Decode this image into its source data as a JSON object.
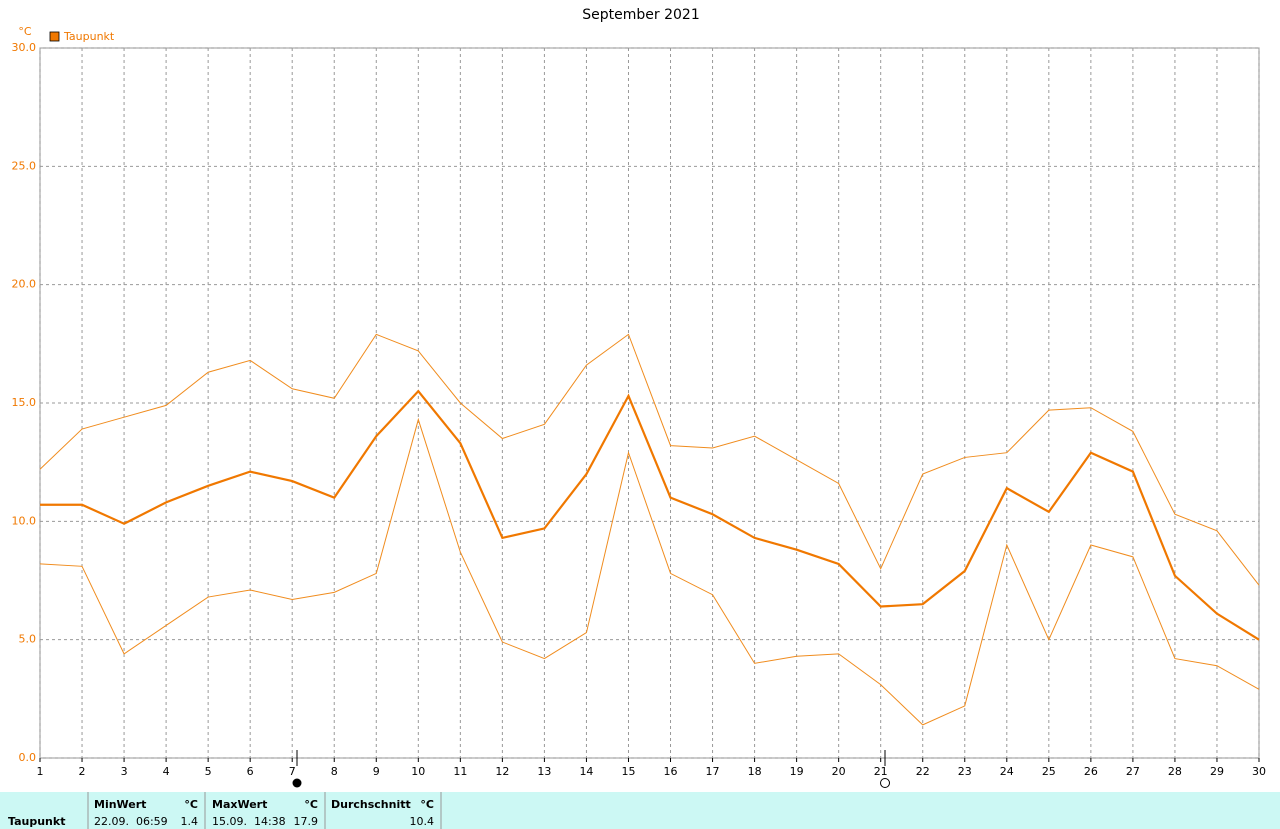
{
  "chart_data": {
    "type": "line",
    "title": "September 2021",
    "y_label": "°C",
    "x": [
      1,
      2,
      3,
      4,
      5,
      6,
      7,
      8,
      9,
      10,
      11,
      12,
      13,
      14,
      15,
      16,
      17,
      18,
      19,
      20,
      21,
      22,
      23,
      24,
      25,
      26,
      27,
      28,
      29,
      30
    ],
    "xlim": [
      1,
      30
    ],
    "xticks": [
      1,
      2,
      3,
      4,
      5,
      6,
      7,
      8,
      9,
      10,
      11,
      12,
      13,
      14,
      15,
      16,
      17,
      18,
      19,
      20,
      21,
      22,
      23,
      24,
      25,
      26,
      27,
      28,
      29,
      30
    ],
    "ylim": [
      0,
      30
    ],
    "yticks": [
      {
        "value": 0,
        "label": "0.0"
      },
      {
        "value": 5,
        "label": "5.0"
      },
      {
        "value": 10,
        "label": "10.0"
      },
      {
        "value": 15,
        "label": "15.0"
      },
      {
        "value": 20,
        "label": "20.0"
      },
      {
        "value": 25,
        "label": "25.0"
      },
      {
        "value": 30,
        "label": "30.0"
      }
    ],
    "grid": true,
    "legend": "top-left",
    "series": [
      {
        "name": "Taupunkt",
        "color": "#f07800",
        "values": [
          10.7,
          10.7,
          9.9,
          10.8,
          11.5,
          12.1,
          11.7,
          11.0,
          13.6,
          15.5,
          13.3,
          9.3,
          9.7,
          12.0,
          15.3,
          11.0,
          10.3,
          9.3,
          8.8,
          8.2,
          6.4,
          6.5,
          7.9,
          11.4,
          10.4,
          12.9,
          12.1,
          7.7,
          6.1,
          5.0
        ]
      },
      {
        "color": "#f08c1e",
        "values": [
          12.2,
          13.9,
          14.4,
          14.9,
          16.3,
          16.8,
          15.6,
          15.2,
          17.9,
          17.2,
          15.0,
          13.5,
          14.1,
          16.6,
          17.9,
          13.2,
          13.1,
          13.6,
          12.6,
          11.6,
          8.0,
          12.0,
          12.7,
          12.9,
          14.7,
          14.8,
          13.8,
          10.3,
          9.6,
          7.3
        ]
      },
      {
        "color": "#f08c1e",
        "values": [
          8.2,
          8.1,
          4.4,
          5.6,
          6.8,
          7.1,
          6.7,
          7.0,
          7.8,
          14.3,
          8.7,
          4.9,
          4.2,
          5.3,
          12.9,
          7.8,
          6.9,
          4.0,
          4.3,
          4.4,
          3.1,
          1.4,
          2.2,
          9.0,
          5.0,
          9.0,
          8.5,
          4.2,
          3.9,
          2.9
        ]
      }
    ]
  },
  "summary": {
    "row_label": "Taupunkt",
    "headers": [
      "MinWert",
      "°C",
      "MaxWert",
      "°C",
      "Durchschnitt",
      "°C"
    ],
    "min_time": "22.09.  06:59",
    "min_value": 1.4,
    "max_time": "15.09.  14:38",
    "max_value": 17.9,
    "average": 10.4
  }
}
